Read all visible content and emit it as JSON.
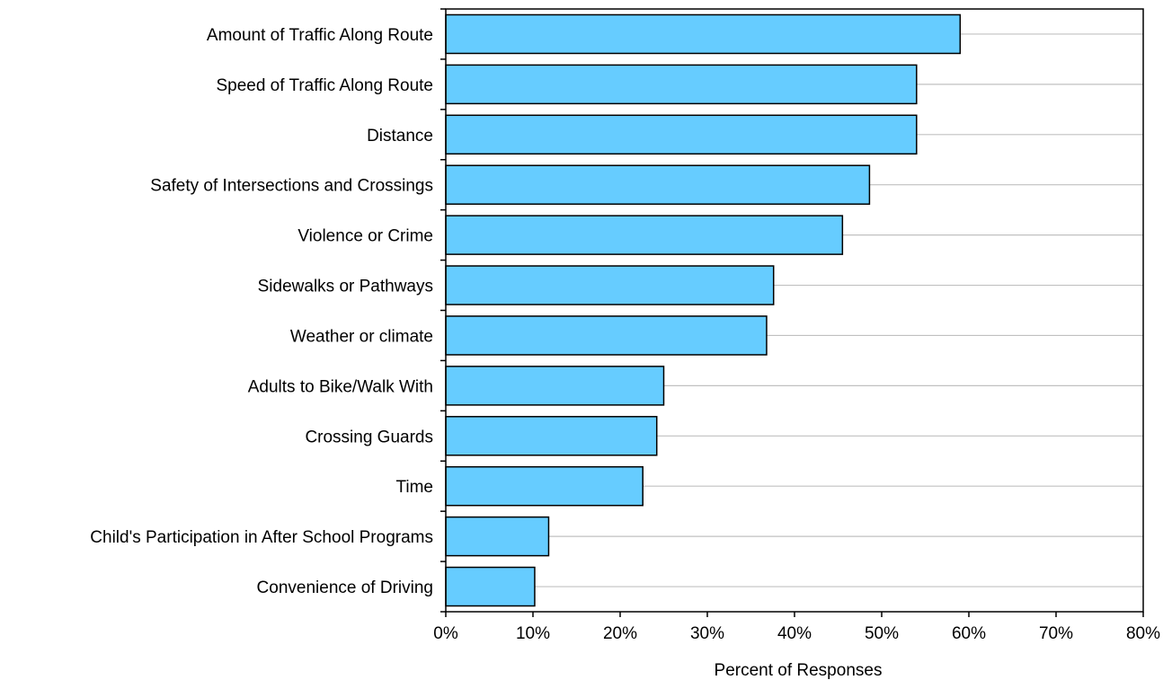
{
  "chart_data": {
    "type": "bar",
    "orientation": "horizontal",
    "title": "",
    "xlabel": "Percent of Responses",
    "ylabel": "",
    "xlim": [
      0,
      80
    ],
    "x_ticks": [
      0,
      10,
      20,
      30,
      40,
      50,
      60,
      70,
      80
    ],
    "x_tick_labels": [
      "0%",
      "10%",
      "20%",
      "30%",
      "40%",
      "50%",
      "60%",
      "70%",
      "80%"
    ],
    "grid": "horizontal",
    "legend": "none",
    "categories": [
      "Amount of Traffic Along Route",
      "Speed of Traffic Along Route",
      "Distance",
      "Safety of Intersections and Crossings",
      "Violence or Crime",
      "Sidewalks or Pathways",
      "Weather or climate",
      "Adults to Bike/Walk With",
      "Crossing Guards",
      "Time",
      "Child's Participation in After School Programs",
      "Convenience of Driving"
    ],
    "values": [
      59,
      54,
      54,
      48.6,
      45.5,
      37.6,
      36.8,
      25,
      24.2,
      22.6,
      11.8,
      10.2
    ],
    "colors": {
      "bar_fill": "#66ccff",
      "bar_stroke": "#000000",
      "grid": "#c0c0c0",
      "axis": "#000000"
    }
  }
}
